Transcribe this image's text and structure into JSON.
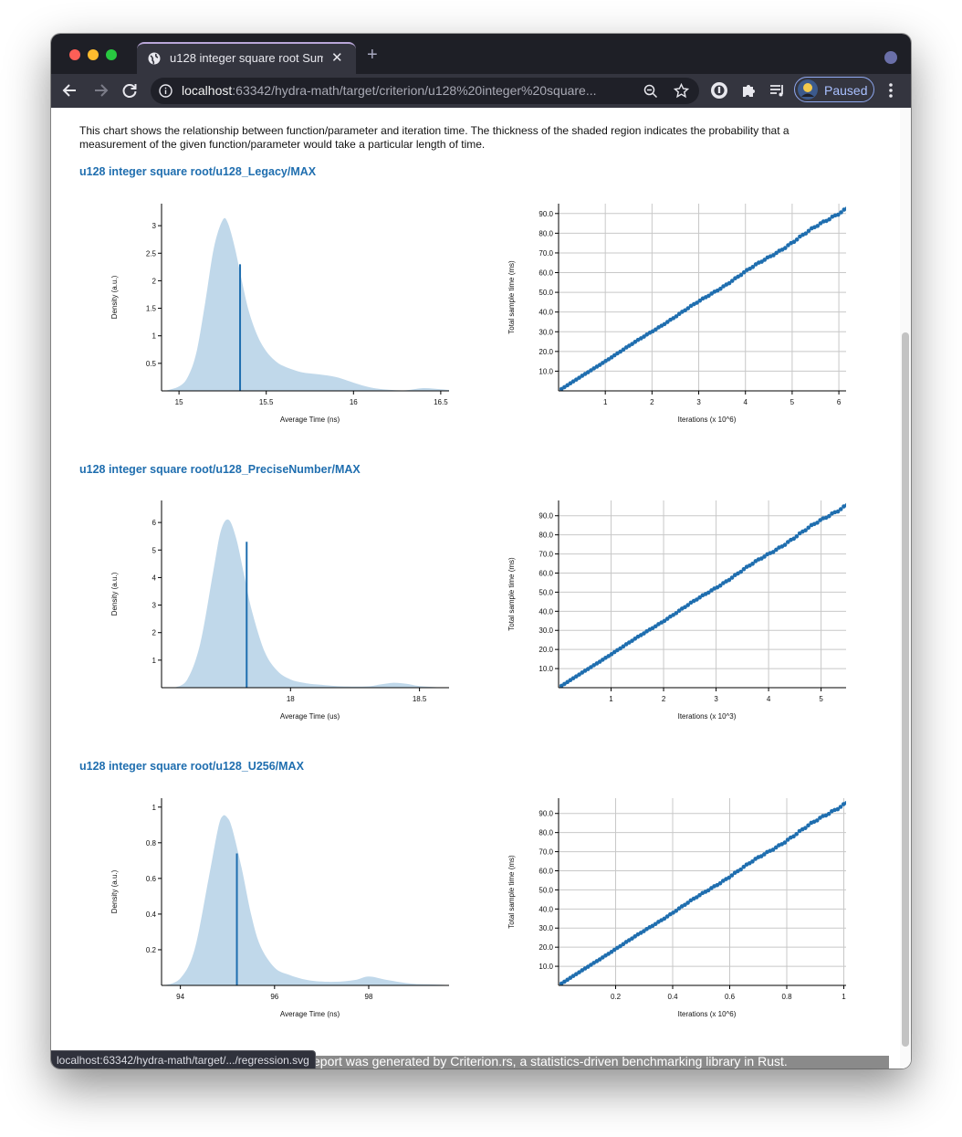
{
  "browser": {
    "tab_title": "u128 integer square root Summ",
    "url_host": "localhost",
    "url_path": ":63342/hydra-math/target/criterion/u128%20integer%20square...",
    "profile_label": "Paused",
    "status_url": "localhost:63342/hydra-math/target/.../regression.svg"
  },
  "page": {
    "description": "This chart shows the relationship between function/parameter and iteration time. The thickness of the shaded region indicates the probability that a measurement of the given function/parameter would take a particular length of time.",
    "footer": "This report was generated by Criterion.rs, a statistics-driven benchmarking library in Rust."
  },
  "colors": {
    "link": "#1f6eaf",
    "density_fill": "#c0d8ea",
    "series": "#1f6eaf"
  },
  "chart_data": [
    {
      "type": "area",
      "section": "u128 integer square root/u128_Legacy/MAX",
      "xlabel": "Average Time (ns)",
      "ylabel": "Density (a.u.)",
      "xlim": [
        14.9,
        16.6
      ],
      "ylim": [
        0,
        3.4
      ],
      "xticks": [
        15,
        15.5,
        16,
        16.5
      ],
      "xtick_labels": [
        "15",
        "15.5",
        "16",
        "16.5"
      ],
      "yticks": [
        0.5,
        1,
        1.5,
        2,
        2.5,
        3
      ],
      "ytick_labels": [
        "0.5",
        "1",
        "1.5",
        "2",
        "2.5",
        "3"
      ],
      "x": [
        14.92,
        15.0,
        15.05,
        15.1,
        15.15,
        15.2,
        15.25,
        15.28,
        15.32,
        15.36,
        15.4,
        15.45,
        15.5,
        15.55,
        15.6,
        15.7,
        15.8,
        15.9,
        16.0,
        16.1,
        16.2,
        16.3,
        16.4,
        16.5,
        16.6
      ],
      "y": [
        0.0,
        0.08,
        0.25,
        0.7,
        1.6,
        2.6,
        3.1,
        3.05,
        2.6,
        2.0,
        1.45,
        1.0,
        0.72,
        0.55,
        0.45,
        0.34,
        0.3,
        0.25,
        0.15,
        0.06,
        0.02,
        0.01,
        0.05,
        0.03,
        0.0
      ],
      "mean_x": 15.35,
      "mean_y": 2.3
    },
    {
      "type": "scatter",
      "section": "u128 integer square root/u128_Legacy/MAX",
      "xlabel": "Iterations (x 10^6)",
      "ylabel": "Total sample time (ms)",
      "xlim": [
        0,
        6.35
      ],
      "ylim": [
        0,
        95
      ],
      "xticks": [
        1,
        2,
        3,
        4,
        5,
        6
      ],
      "xtick_labels": [
        "1",
        "2",
        "3",
        "4",
        "5",
        "6"
      ],
      "yticks": [
        10,
        20,
        30,
        40,
        50,
        60,
        70,
        80,
        90
      ],
      "ytick_labels": [
        "10.0",
        "20.0",
        "30.0",
        "40.0",
        "50.0",
        "60.0",
        "70.0",
        "80.0",
        "90.0"
      ],
      "n_points": 100,
      "x_max": 6.3,
      "y_max": 95
    },
    {
      "type": "area",
      "section": "u128 integer square root/u128_PreciseNumber/MAX",
      "xlabel": "Average Time (us)",
      "ylabel": "Density (a.u.)",
      "xlim": [
        17.5,
        18.65
      ],
      "ylim": [
        0,
        6.8
      ],
      "xticks": [
        18,
        18.5
      ],
      "xtick_labels": [
        "18",
        "18.5"
      ],
      "yticks": [
        1,
        2,
        3,
        4,
        5,
        6
      ],
      "ytick_labels": [
        "1",
        "2",
        "3",
        "4",
        "5",
        "6"
      ],
      "x": [
        17.55,
        17.6,
        17.65,
        17.7,
        17.73,
        17.76,
        17.79,
        17.82,
        17.85,
        17.9,
        17.95,
        18.0,
        18.05,
        18.1,
        18.2,
        18.3,
        18.35,
        18.4,
        18.45,
        18.5,
        18.6
      ],
      "y": [
        0.0,
        0.3,
        1.6,
        4.2,
        5.7,
        6.1,
        5.4,
        4.1,
        2.8,
        1.3,
        0.6,
        0.3,
        0.18,
        0.12,
        0.05,
        0.05,
        0.12,
        0.18,
        0.14,
        0.06,
        0.0
      ],
      "mean_x": 17.83,
      "mean_y": 5.3
    },
    {
      "type": "scatter",
      "section": "u128 integer square root/u128_PreciseNumber/MAX",
      "xlabel": "Iterations (x 10^3)",
      "ylabel": "Total sample time (ms)",
      "xlim": [
        0,
        5.65
      ],
      "ylim": [
        0,
        98
      ],
      "xticks": [
        1,
        2,
        3,
        4,
        5
      ],
      "xtick_labels": [
        "1",
        "2",
        "3",
        "4",
        "5"
      ],
      "yticks": [
        10,
        20,
        30,
        40,
        50,
        60,
        70,
        80,
        90
      ],
      "ytick_labels": [
        "10.0",
        "20.0",
        "30.0",
        "40.0",
        "50.0",
        "60.0",
        "70.0",
        "80.0",
        "90.0"
      ],
      "n_points": 100,
      "x_max": 5.6,
      "y_max": 98
    },
    {
      "type": "area",
      "section": "u128 integer square root/u128_U256/MAX",
      "xlabel": "Average Time (ns)",
      "ylabel": "Density (a.u.)",
      "xlim": [
        93.6,
        99.9
      ],
      "ylim": [
        0,
        1.05
      ],
      "xticks": [
        94,
        96,
        98
      ],
      "xtick_labels": [
        "94",
        "96",
        "98"
      ],
      "yticks": [
        0.2,
        0.4,
        0.6,
        0.8,
        1
      ],
      "ytick_labels": [
        "0.2",
        "0.4",
        "0.6",
        "0.8",
        "1"
      ],
      "x": [
        93.65,
        94.0,
        94.3,
        94.6,
        94.8,
        94.9,
        95.0,
        95.1,
        95.3,
        95.5,
        95.7,
        96.0,
        96.3,
        96.7,
        97.2,
        97.7,
        98.0,
        98.4,
        98.9,
        99.4,
        99.9
      ],
      "y": [
        0.0,
        0.04,
        0.2,
        0.6,
        0.88,
        0.95,
        0.94,
        0.88,
        0.66,
        0.4,
        0.22,
        0.1,
        0.06,
        0.03,
        0.02,
        0.03,
        0.05,
        0.03,
        0.01,
        0.005,
        0.0
      ],
      "mean_x": 95.2,
      "mean_y": 0.74
    },
    {
      "type": "scatter",
      "section": "u128 integer square root/u128_U256/MAX",
      "xlabel": "Iterations (x 10^6)",
      "ylabel": "Total sample time (ms)",
      "xlim": [
        0,
        1.04
      ],
      "ylim": [
        0,
        98
      ],
      "xticks": [
        0.2,
        0.4,
        0.6,
        0.8,
        1
      ],
      "xtick_labels": [
        "0.2",
        "0.4",
        "0.6",
        "0.8",
        "1"
      ],
      "yticks": [
        10,
        20,
        30,
        40,
        50,
        60,
        70,
        80,
        90
      ],
      "ytick_labels": [
        "10.0",
        "20.0",
        "30.0",
        "40.0",
        "50.0",
        "60.0",
        "70.0",
        "80.0",
        "90.0"
      ],
      "n_points": 100,
      "x_max": 1.03,
      "y_max": 98
    }
  ]
}
